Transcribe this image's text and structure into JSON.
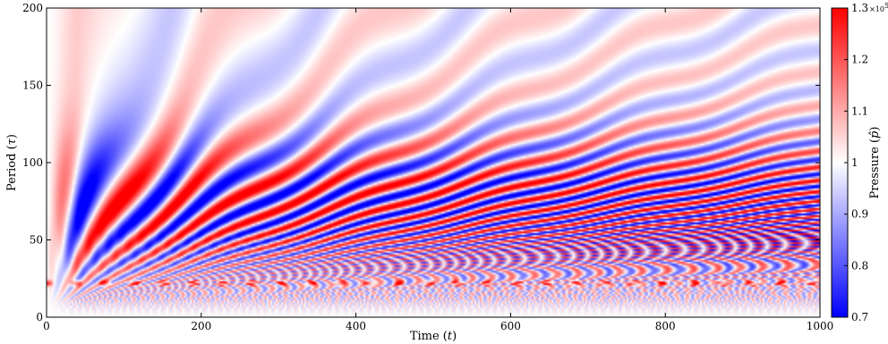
{
  "chart_data": {
    "type": "heatmap",
    "title": "",
    "x_axis": {
      "label_main": "Time (",
      "label_var": "t",
      "label_close": ")",
      "range": [
        0,
        1000
      ],
      "ticks": [
        0,
        200,
        400,
        600,
        800,
        1000
      ],
      "tick_labels": [
        "0",
        "200",
        "400",
        "600",
        "800",
        "1000"
      ]
    },
    "y_axis": {
      "label_main": "Period (",
      "label_var": "τ",
      "label_close": ")",
      "range": [
        0,
        200
      ],
      "ticks": [
        0,
        50,
        100,
        150,
        200
      ],
      "tick_labels": [
        "0",
        "50",
        "100",
        "150",
        "200"
      ]
    },
    "colorbar": {
      "label_main": "Pressure (",
      "label_var": "p̂",
      "label_close": ")",
      "range": [
        0.7,
        1.3
      ],
      "ticks": [
        0.7,
        0.8,
        0.9,
        1.0,
        1.1,
        1.2,
        1.3
      ],
      "tick_labels": [
        "0.7",
        "0.8",
        "0.9",
        "1",
        "1.1",
        "1.2",
        "1.3"
      ],
      "top_tick_label": "1.3",
      "multiplier_prefix": "×10",
      "multiplier_exponent": "5",
      "colormap": "bwr",
      "colors": {
        "low": "#0000ff",
        "mid": "#ffffff",
        "high": "#ff0000"
      }
    },
    "grid": false,
    "features": {
      "fringe_pattern": "fan of alternating high/low pressure bands radiating from origin, strongest near period 60-80",
      "strong_band_period": 22
    }
  }
}
